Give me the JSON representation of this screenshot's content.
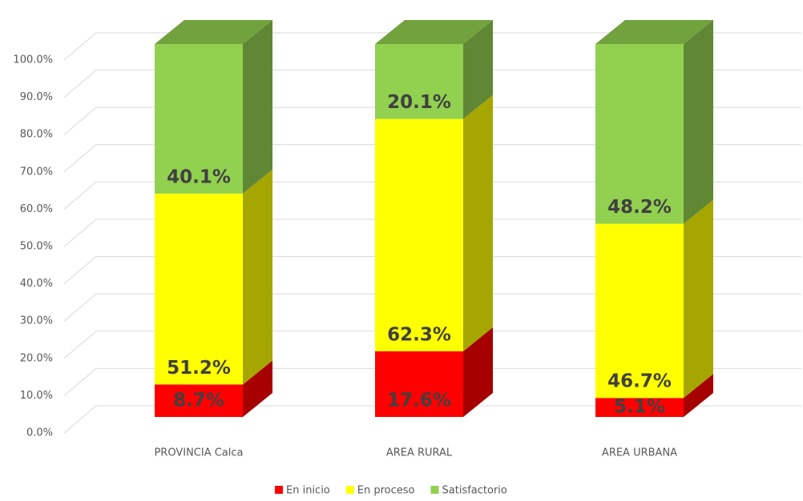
{
  "chart_data": {
    "type": "bar3d_stacked",
    "categories": [
      "PROVINCIA Calca",
      "AREA RURAL",
      "AREA URBANA"
    ],
    "series": [
      {
        "name": "En inicio",
        "color": "#ff0000",
        "values": [
          8.7,
          17.6,
          5.1
        ],
        "value_labels": [
          "8.7%",
          "17.6%",
          "5.1%"
        ]
      },
      {
        "name": "En proceso",
        "color": "#ffff00",
        "values": [
          51.2,
          62.3,
          46.7
        ],
        "value_labels": [
          "51.2%",
          "62.3%",
          "46.7%"
        ]
      },
      {
        "name": "Satisfactorio",
        "color": "#92d050",
        "values": [
          40.1,
          20.1,
          48.2
        ],
        "value_labels": [
          "40.1%",
          "20.1%",
          "48.2%"
        ]
      }
    ],
    "ylim": [
      0,
      100
    ],
    "yticks": [
      {
        "value": 0,
        "label": "0.0%"
      },
      {
        "value": 10,
        "label": "10.0%"
      },
      {
        "value": 20,
        "label": "20.0%"
      },
      {
        "value": 30,
        "label": "30.0%"
      },
      {
        "value": 40,
        "label": "40.0%"
      },
      {
        "value": 50,
        "label": "50.0%"
      },
      {
        "value": 60,
        "label": "60.0%"
      },
      {
        "value": 70,
        "label": "70.0%"
      },
      {
        "value": 80,
        "label": "80.0%"
      },
      {
        "value": 90,
        "label": "90.0%"
      },
      {
        "value": 100,
        "label": "100.0%"
      }
    ],
    "grid": true,
    "legend": "bottom"
  }
}
